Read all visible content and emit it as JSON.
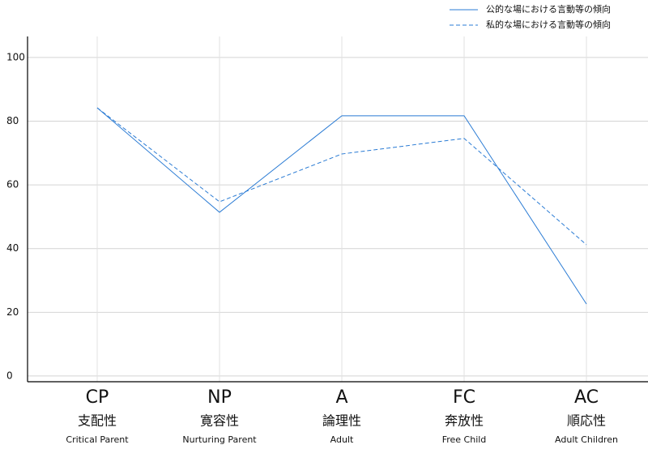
{
  "chart_data": {
    "type": "line",
    "categories": [
      "CP",
      "NP",
      "A",
      "FC",
      "AC"
    ],
    "category_names_ja": [
      "支配性",
      "寛容性",
      "論理性",
      "奔放性",
      "順応性"
    ],
    "category_names_en": [
      "Critical Parent",
      "Nurturing Parent",
      "Adult",
      "Free Child",
      "Adult Children"
    ],
    "series": [
      {
        "name": "公的な場における言動等の傾向",
        "color": "#2a7bd4",
        "dash": "solid",
        "values": [
          84.2,
          51.4,
          81.7,
          81.7,
          22.6
        ]
      },
      {
        "name": "私的な場における言動等の傾向",
        "color": "#2a7bd4",
        "dash": "dashed",
        "values": [
          84.2,
          54.7,
          69.7,
          74.6,
          41.2
        ]
      }
    ],
    "ylim": [
      -1.8,
      106.6
    ],
    "yticks": [
      0,
      20,
      40,
      60,
      80,
      100
    ],
    "grid": true,
    "legend": "top-right"
  }
}
